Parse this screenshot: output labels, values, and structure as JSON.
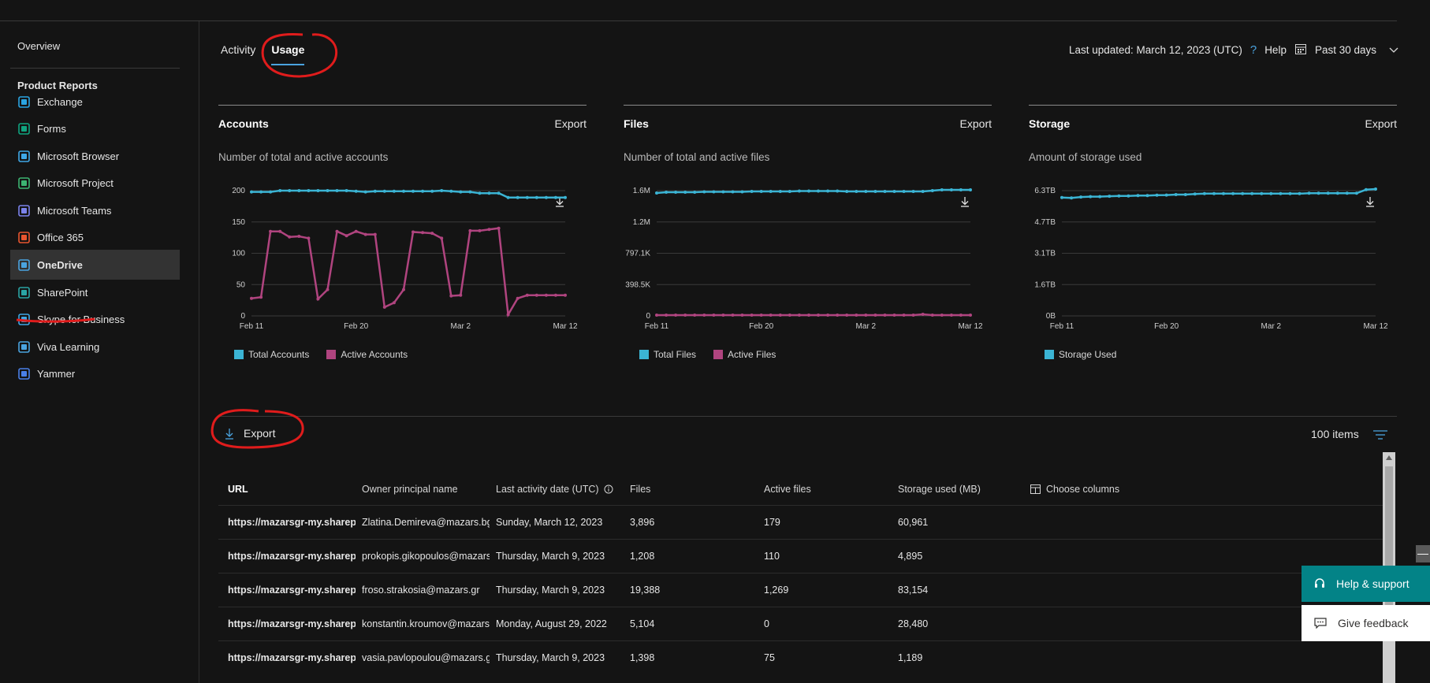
{
  "sidebar": {
    "overview": "Overview",
    "section_title": "Product Reports",
    "items": [
      {
        "label": "Exchange",
        "icon": "exchange-icon",
        "color": "#2aa4e1"
      },
      {
        "label": "Forms",
        "icon": "forms-icon",
        "color": "#10a37f"
      },
      {
        "label": "Microsoft Browser",
        "icon": "edge-icon",
        "color": "#3fa7e6"
      },
      {
        "label": "Microsoft Project",
        "icon": "project-icon",
        "color": "#3cb371"
      },
      {
        "label": "Microsoft Teams",
        "icon": "teams-icon",
        "color": "#7b83eb"
      },
      {
        "label": "Office 365",
        "icon": "office-icon",
        "color": "#e8552f"
      },
      {
        "label": "OneDrive",
        "icon": "onedrive-icon",
        "color": "#4aa3df",
        "active": true
      },
      {
        "label": "SharePoint",
        "icon": "sharepoint-icon",
        "color": "#2aa4a4"
      },
      {
        "label": "Skype for Business",
        "icon": "skype-icon",
        "color": "#3fa7e6"
      },
      {
        "label": "Viva Learning",
        "icon": "viva-icon",
        "color": "#4aa3df"
      },
      {
        "label": "Yammer",
        "icon": "yammer-icon",
        "color": "#4a7fe6"
      }
    ]
  },
  "tabs": [
    {
      "label": "Activity",
      "active": false
    },
    {
      "label": "Usage",
      "active": true
    }
  ],
  "header": {
    "last_updated": "Last updated: March 12, 2023 (UTC)",
    "help": "Help",
    "period": "Past 30 days"
  },
  "cards": [
    {
      "title": "Accounts",
      "export": "Export",
      "subtitle": "Number of total and active accounts"
    },
    {
      "title": "Files",
      "export": "Export",
      "subtitle": "Number of total and active files"
    },
    {
      "title": "Storage",
      "export": "Export",
      "subtitle": "Amount of storage used"
    }
  ],
  "chart_data": [
    {
      "type": "line",
      "title": "Accounts",
      "x_ticks": [
        "Feb 11",
        "Feb 20",
        "Mar 2",
        "Mar 12"
      ],
      "y_ticks": [
        "0",
        "50",
        "100",
        "150",
        "200"
      ],
      "ylim": [
        0,
        200
      ],
      "grid": true,
      "legend": "bottom",
      "series": [
        {
          "name": "Total Accounts",
          "color": "#3bb4d4",
          "values": [
            198,
            198,
            198,
            200,
            200,
            200,
            200,
            200,
            200,
            200,
            200,
            199,
            198,
            199,
            199,
            199,
            199,
            199,
            199,
            199,
            200,
            199,
            198,
            198,
            196,
            196,
            196,
            189,
            189,
            189,
            189,
            189,
            189,
            189
          ]
        },
        {
          "name": "Active Accounts",
          "color": "#b0447f",
          "values": [
            28,
            30,
            135,
            135,
            126,
            127,
            124,
            27,
            42,
            135,
            128,
            135,
            130,
            130,
            14,
            21,
            42,
            134,
            133,
            132,
            124,
            32,
            33,
            136,
            136,
            138,
            140,
            2,
            28,
            33,
            33,
            33,
            33,
            33
          ]
        }
      ]
    },
    {
      "type": "line",
      "title": "Files",
      "x_ticks": [
        "Feb 11",
        "Feb 20",
        "Mar 2",
        "Mar 12"
      ],
      "y_ticks": [
        "0",
        "398.5K",
        "797.1K",
        "1.2M",
        "1.6M"
      ],
      "ylim": [
        0,
        1.6
      ],
      "grid": true,
      "legend": "bottom",
      "series": [
        {
          "name": "Total Files",
          "color": "#3bb4d4",
          "values": [
            1.57,
            1.58,
            1.58,
            1.58,
            1.58,
            1.585,
            1.585,
            1.585,
            1.585,
            1.585,
            1.59,
            1.59,
            1.59,
            1.59,
            1.59,
            1.595,
            1.595,
            1.595,
            1.595,
            1.595,
            1.59,
            1.59,
            1.59,
            1.59,
            1.59,
            1.59,
            1.59,
            1.59,
            1.59,
            1.6,
            1.61,
            1.61,
            1.61,
            1.61
          ]
        },
        {
          "name": "Active Files",
          "color": "#b0447f",
          "values": [
            0.01,
            0.01,
            0.01,
            0.01,
            0.01,
            0.01,
            0.01,
            0.01,
            0.01,
            0.01,
            0.01,
            0.01,
            0.01,
            0.01,
            0.01,
            0.01,
            0.01,
            0.01,
            0.01,
            0.01,
            0.01,
            0.01,
            0.01,
            0.01,
            0.01,
            0.01,
            0.01,
            0.01,
            0.02,
            0.01,
            0.01,
            0.01,
            0.01,
            0.01
          ]
        }
      ]
    },
    {
      "type": "line",
      "title": "Storage",
      "x_ticks": [
        "Feb 11",
        "Feb 20",
        "Mar 2",
        "Mar 12"
      ],
      "y_ticks": [
        "0B",
        "1.6TB",
        "3.1TB",
        "4.7TB",
        "6.3TB"
      ],
      "ylim": [
        0,
        6.3
      ],
      "grid": true,
      "legend": "bottom",
      "series": [
        {
          "name": "Storage Used",
          "color": "#3bb4d4",
          "values": [
            5.95,
            5.93,
            5.98,
            6.0,
            6.0,
            6.02,
            6.03,
            6.03,
            6.05,
            6.05,
            6.07,
            6.08,
            6.1,
            6.1,
            6.13,
            6.15,
            6.15,
            6.15,
            6.15,
            6.15,
            6.15,
            6.15,
            6.15,
            6.15,
            6.15,
            6.15,
            6.17,
            6.17,
            6.17,
            6.17,
            6.17,
            6.17,
            6.35,
            6.38
          ]
        }
      ]
    }
  ],
  "table": {
    "export": "Export",
    "items": "100 items",
    "choose_columns": "Choose columns",
    "columns": [
      "URL",
      "Owner principal name",
      "Last activity date (UTC)",
      "Files",
      "Active files",
      "Storage used (MB)"
    ],
    "rows": [
      [
        "https://mazarsgr-my.sharepo",
        "Zlatina.Demireva@mazars.bg",
        "Sunday, March 12, 2023",
        "3,896",
        "179",
        "60,961"
      ],
      [
        "https://mazarsgr-my.sharepo",
        "prokopis.gikopoulos@mazars.",
        "Thursday, March 9, 2023",
        "1,208",
        "110",
        "4,895"
      ],
      [
        "https://mazarsgr-my.sharepo",
        "froso.strakosia@mazars.gr",
        "Thursday, March 9, 2023",
        "19,388",
        "1,269",
        "83,154"
      ],
      [
        "https://mazarsgr-my.sharepo",
        "konstantin.kroumov@mazars.l",
        "Monday, August 29, 2022",
        "5,104",
        "0",
        "28,480"
      ],
      [
        "https://mazarsgr-my.sharepo",
        "vasia.pavlopoulou@mazars.gr",
        "Thursday, March 9, 2023",
        "1,398",
        "75",
        "1,189"
      ]
    ]
  },
  "support": {
    "help": "Help & support",
    "feedback": "Give feedback"
  }
}
